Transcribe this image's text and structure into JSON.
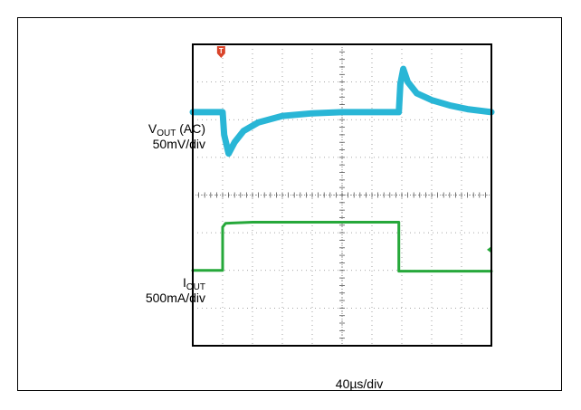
{
  "chart_data": {
    "type": "line",
    "title": "",
    "xlabel": "40µs/div",
    "x_divisions": 10,
    "y_divisions": 8,
    "grid": true,
    "background": "#ffffff",
    "trigger_marker": "T",
    "traces": [
      {
        "id": "vout",
        "label_main": "V",
        "label_sub": "OUT",
        "label_suffix": " (AC)",
        "scale": "50mV/div",
        "color": "#29b6d6",
        "unit": "div",
        "x": [
          0,
          1.0,
          1.05,
          1.2,
          1.4,
          1.7,
          2.2,
          3.0,
          4.0,
          5.0,
          6.0,
          6.9,
          6.95,
          7.05,
          7.2,
          7.5,
          8.0,
          8.6,
          9.2,
          10.0
        ],
        "y": [
          6.2,
          6.2,
          5.6,
          5.1,
          5.4,
          5.7,
          5.93,
          6.1,
          6.17,
          6.2,
          6.2,
          6.2,
          6.95,
          7.35,
          7.0,
          6.7,
          6.52,
          6.38,
          6.28,
          6.2
        ]
      },
      {
        "id": "iout",
        "label_main": "I",
        "label_sub": "OUT",
        "label_suffix": "",
        "scale": "500mA/div",
        "color": "#26a83a",
        "unit": "div",
        "x": [
          0,
          1.0,
          1.0,
          1.1,
          2.0,
          4.0,
          6.0,
          6.9,
          6.9,
          10.0
        ],
        "y": [
          2.0,
          2.0,
          3.15,
          3.25,
          3.28,
          3.28,
          3.28,
          3.28,
          1.98,
          1.98
        ]
      }
    ]
  }
}
